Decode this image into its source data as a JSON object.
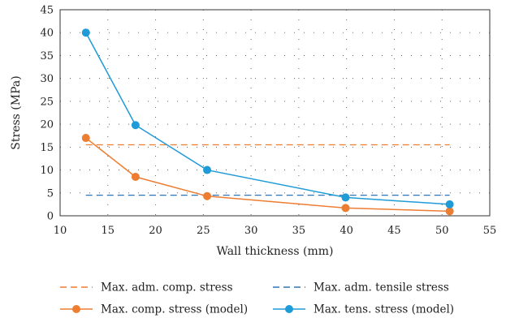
{
  "chart_data": {
    "type": "line",
    "xlabel": "Wall thickness (mm)",
    "ylabel": "Stress (MPa)",
    "xlim": [
      10,
      55
    ],
    "ylim": [
      0,
      45
    ],
    "xticks": [
      10,
      15,
      20,
      25,
      30,
      35,
      40,
      45,
      50,
      55
    ],
    "yticks": [
      0,
      5,
      10,
      15,
      20,
      25,
      30,
      35,
      40,
      45
    ],
    "grid": "dotted",
    "legend_position": "bottom",
    "series": [
      {
        "name": "Max. adm. comp. stress",
        "style": "dashed",
        "color": "#ED7D31",
        "x": [
          12.7,
          50.8
        ],
        "y": [
          15.5,
          15.5
        ]
      },
      {
        "name": "Max. adm. tensile stress",
        "style": "dashed",
        "color": "#2E75B6",
        "x": [
          12.7,
          50.8
        ],
        "y": [
          4.5,
          4.5
        ]
      },
      {
        "name": "Max. comp. stress (model)",
        "style": "solid-marker",
        "color": "#ED7D31",
        "x": [
          12.7,
          17.9,
          25.4,
          39.9,
          50.8
        ],
        "y": [
          17,
          8.5,
          4.3,
          1.7,
          1
        ]
      },
      {
        "name": "Max. tens. stress (model)",
        "style": "solid-marker",
        "color": "#1F9BD7",
        "x": [
          12.7,
          17.9,
          25.4,
          39.9,
          50.8
        ],
        "y": [
          40,
          19.8,
          10,
          4,
          2.5
        ]
      }
    ]
  }
}
